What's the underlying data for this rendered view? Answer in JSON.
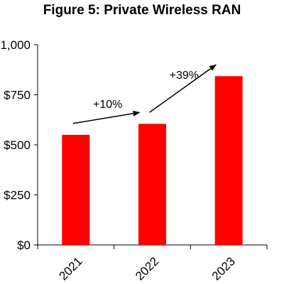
{
  "chart_data": {
    "type": "bar",
    "title": "Figure 5: Private Wireless RAN",
    "categories": [
      "2021",
      "2022",
      "2023"
    ],
    "values": [
      550,
      605,
      843
    ],
    "ylim": [
      0,
      1000
    ],
    "yticks": [
      0,
      250,
      500,
      750,
      1000
    ],
    "ytick_labels": [
      "$0",
      "$250",
      "$500",
      "$750",
      "$1,000"
    ],
    "xlabel": "",
    "ylabel": "",
    "bar_color": "#ff0000",
    "grid": false,
    "annotations": [
      {
        "text": "+10%",
        "from": "2021",
        "to": "2022"
      },
      {
        "text": "+39%",
        "from": "2022",
        "to": "2023"
      }
    ]
  }
}
